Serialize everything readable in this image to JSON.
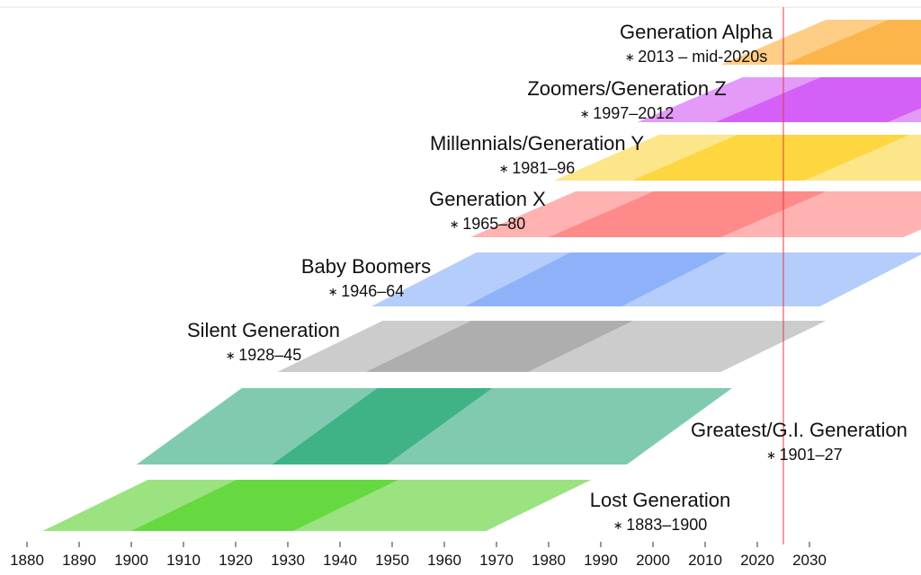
{
  "chart_data": {
    "type": "timeline",
    "x_axis": {
      "min": 1875,
      "max": 2034,
      "ticks": [
        1880,
        1890,
        1900,
        1910,
        1920,
        1930,
        1940,
        1950,
        1960,
        1970,
        1980,
        1990,
        2000,
        2010,
        2020,
        2030
      ]
    },
    "current_year_marker": 2025,
    "generations": [
      {
        "name": "Lost Generation",
        "years_label": "1883–1900",
        "birth_start": 1883,
        "birth_end": 1900,
        "colors": [
          "#9be281",
          "#66d940"
        ]
      },
      {
        "name": "Greatest/G.I. Generation",
        "years_label": "1901–27",
        "birth_start": 1901,
        "birth_end": 1927,
        "colors": [
          "#80cbb0",
          "#3fb386"
        ]
      },
      {
        "name": "Silent Generation",
        "years_label": "1928–45",
        "birth_start": 1928,
        "birth_end": 1945,
        "colors": [
          "#cccccc",
          "#aeaeae"
        ]
      },
      {
        "name": "Baby Boomers",
        "years_label": "1946–64",
        "birth_start": 1946,
        "birth_end": 1964,
        "colors": [
          "#b5cdfb",
          "#8db2fa"
        ]
      },
      {
        "name": "Generation X",
        "years_label": "1965–80",
        "birth_start": 1965,
        "birth_end": 1980,
        "colors": [
          "#ffb2b2",
          "#ff8a8a"
        ]
      },
      {
        "name": "Millennials/Generation Y",
        "years_label": "1981–96",
        "birth_start": 1981,
        "birth_end": 1996,
        "colors": [
          "#fde58a",
          "#fdd640"
        ]
      },
      {
        "name": "Zoomers/Generation Z",
        "years_label": "1997–2012",
        "birth_start": 1997,
        "birth_end": 2012,
        "colors": [
          "#e39af9",
          "#d460f8"
        ]
      },
      {
        "name": "Generation Alpha",
        "years_label": "2013 – mid-2020s",
        "birth_start": 2013,
        "birth_end": 2025,
        "colors": [
          "#fecd86",
          "#fcb54a"
        ]
      }
    ]
  }
}
